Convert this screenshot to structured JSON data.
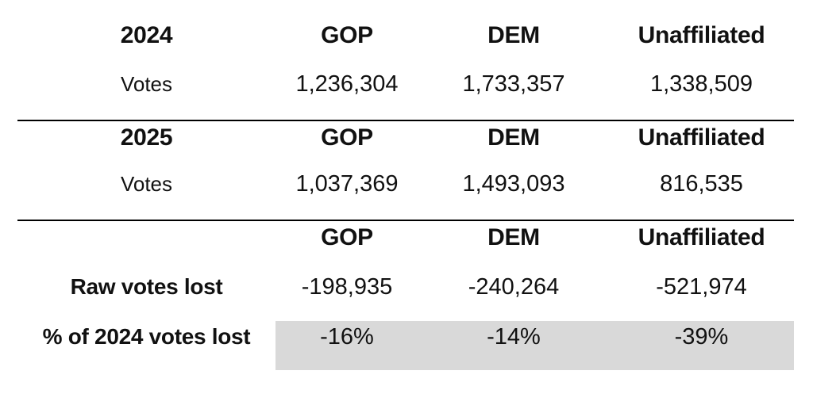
{
  "colors": {
    "highlight": "#d9d9d9",
    "text": "#111111",
    "rule": "#000000",
    "background": "#ffffff"
  },
  "table": {
    "s1": {
      "year": "2024",
      "c1": "GOP",
      "c2": "DEM",
      "c3": "Unaffiliated",
      "rowlabel": "Votes",
      "v1": "1,236,304",
      "v2": "1,733,357",
      "v3": "1,338,509"
    },
    "s2": {
      "year": "2025",
      "c1": "GOP",
      "c2": "DEM",
      "c3": "Unaffiliated",
      "rowlabel": "Votes",
      "v1": "1,037,369",
      "v2": "1,493,093",
      "v3": "816,535"
    },
    "s3": {
      "c1": "GOP",
      "c2": "DEM",
      "c3": "Unaffiliated",
      "raw_label": "Raw votes lost",
      "raw1": "-198,935",
      "raw2": "-240,264",
      "raw3": "-521,974",
      "pct_label": "% of 2024 votes lost",
      "pct1": "-16%",
      "pct2": "-14%",
      "pct3": "-39%"
    }
  },
  "chart_data": {
    "type": "table",
    "columns": [
      "GOP",
      "DEM",
      "Unaffiliated"
    ],
    "sections": [
      {
        "year": "2024",
        "rows": [
          {
            "label": "Votes",
            "values": [
              1236304,
              1733357,
              1338509
            ]
          }
        ]
      },
      {
        "year": "2025",
        "rows": [
          {
            "label": "Votes",
            "values": [
              1037369,
              1493093,
              816535
            ]
          }
        ]
      },
      {
        "year": "",
        "rows": [
          {
            "label": "Raw votes lost",
            "values": [
              -198935,
              -240264,
              -521974
            ],
            "highlighted": false
          },
          {
            "label": "% of 2024 votes lost",
            "values": [
              "-16%",
              "-14%",
              "-39%"
            ],
            "highlighted": true
          }
        ]
      }
    ],
    "layout_hints": {
      "highlight_row": "% of 2024 votes lost",
      "highlight_fill": "#d9d9d9",
      "section_dividers": "horizontal black rules between year sections"
    }
  }
}
